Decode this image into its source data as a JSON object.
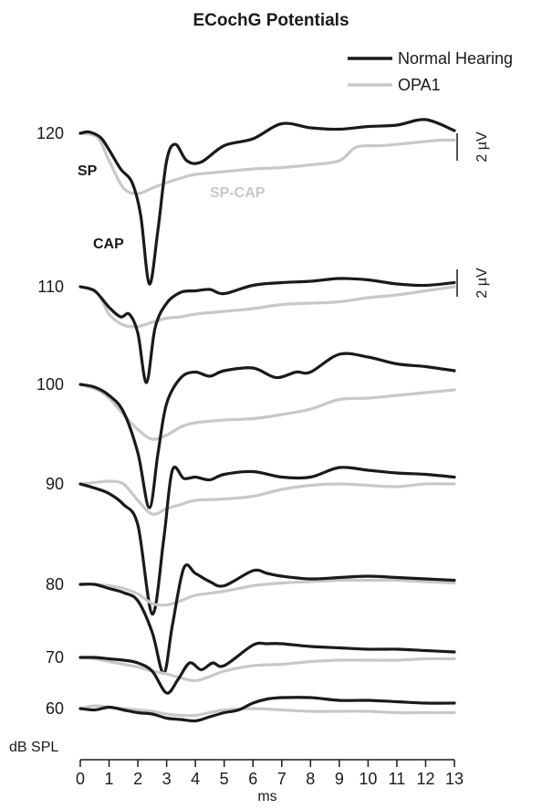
{
  "chart_data": {
    "type": "line",
    "title": "ECochG Potentials",
    "xlabel": "ms",
    "xlim": [
      0,
      13
    ],
    "x_ticks": [
      "0",
      "1",
      "2",
      "3",
      "4",
      "5",
      "6",
      "7",
      "8",
      "9",
      "10",
      "11",
      "12",
      "13"
    ],
    "y_axis_unit_label": "dB SPL",
    "legend": {
      "placement": "top-right",
      "entries": [
        {
          "name": "Normal Hearing",
          "color": "#1a1a1a"
        },
        {
          "name": "OPA1",
          "color": "#c8c8c8"
        }
      ]
    },
    "scale_bar": {
      "label": "2 µV",
      "value_uV": 2
    },
    "annotations": {
      "sp": "SP",
      "cap": "CAP",
      "sp_cap": "SP-CAP"
    },
    "levels": [
      {
        "level": "120",
        "baseline_offset": 0,
        "normal": [
          [
            0,
            0
          ],
          [
            0.3,
            0.1
          ],
          [
            0.7,
            -0.3
          ],
          [
            1.0,
            -1.2
          ],
          [
            1.4,
            -2.6
          ],
          [
            1.8,
            -3.6
          ],
          [
            2.1,
            -6.0
          ],
          [
            2.4,
            -11.0
          ],
          [
            2.7,
            -7.0
          ],
          [
            3.0,
            -2.0
          ],
          [
            3.3,
            -0.8
          ],
          [
            3.7,
            -2.0
          ],
          [
            4.2,
            -2.1
          ],
          [
            5.0,
            -0.9
          ],
          [
            6.0,
            -0.4
          ],
          [
            7.0,
            0.7
          ],
          [
            8.0,
            0.4
          ],
          [
            9.0,
            0.3
          ],
          [
            10.0,
            0.5
          ],
          [
            11.0,
            0.6
          ],
          [
            12.0,
            1.0
          ],
          [
            13.0,
            0.2
          ]
        ],
        "opa1": [
          [
            0,
            0
          ],
          [
            0.6,
            -0.3
          ],
          [
            1.0,
            -2.0
          ],
          [
            1.5,
            -4.0
          ],
          [
            2.0,
            -4.4
          ],
          [
            2.5,
            -4.0
          ],
          [
            3.0,
            -3.6
          ],
          [
            3.6,
            -3.2
          ],
          [
            4.0,
            -3.0
          ],
          [
            5.0,
            -2.8
          ],
          [
            6.0,
            -2.6
          ],
          [
            7.0,
            -2.5
          ],
          [
            8.0,
            -2.3
          ],
          [
            9.0,
            -2.0
          ],
          [
            9.6,
            -1.0
          ],
          [
            10.5,
            -0.9
          ],
          [
            11.5,
            -0.7
          ],
          [
            12.5,
            -0.5
          ],
          [
            13.0,
            -0.5
          ]
        ]
      },
      {
        "level": "110",
        "baseline_offset": 0,
        "normal": [
          [
            0,
            0
          ],
          [
            0.5,
            -0.3
          ],
          [
            1.0,
            -1.5
          ],
          [
            1.4,
            -2.2
          ],
          [
            1.7,
            -2.0
          ],
          [
            2.0,
            -3.4
          ],
          [
            2.3,
            -7.0
          ],
          [
            2.6,
            -3.0
          ],
          [
            3.0,
            -1.2
          ],
          [
            3.5,
            -0.4
          ],
          [
            4.0,
            -0.3
          ],
          [
            4.5,
            -0.2
          ],
          [
            5.0,
            -0.5
          ],
          [
            6.0,
            0.1
          ],
          [
            7.0,
            0.3
          ],
          [
            8.0,
            0.4
          ],
          [
            9.0,
            0.6
          ],
          [
            10.0,
            0.5
          ],
          [
            11.0,
            0.2
          ],
          [
            12.0,
            0.1
          ],
          [
            13.0,
            0.3
          ]
        ],
        "opa1": [
          [
            0,
            0
          ],
          [
            0.6,
            -0.5
          ],
          [
            1.0,
            -2.0
          ],
          [
            1.5,
            -2.8
          ],
          [
            2.0,
            -2.9
          ],
          [
            2.5,
            -2.6
          ],
          [
            3.0,
            -2.3
          ],
          [
            3.5,
            -2.2
          ],
          [
            4.0,
            -2.0
          ],
          [
            5.0,
            -1.8
          ],
          [
            6.0,
            -1.6
          ],
          [
            7.0,
            -1.3
          ],
          [
            8.0,
            -1.2
          ],
          [
            9.0,
            -1.1
          ],
          [
            10.0,
            -0.8
          ],
          [
            11.0,
            -0.6
          ],
          [
            12.0,
            -0.3
          ],
          [
            13.0,
            0.0
          ]
        ]
      },
      {
        "level": "100",
        "baseline_offset": 0,
        "normal": [
          [
            0,
            0
          ],
          [
            0.5,
            -0.2
          ],
          [
            1.0,
            -0.8
          ],
          [
            1.5,
            -2.0
          ],
          [
            2.0,
            -5.0
          ],
          [
            2.4,
            -9.0
          ],
          [
            2.7,
            -5.0
          ],
          [
            3.0,
            -1.4
          ],
          [
            3.5,
            0.5
          ],
          [
            4.0,
            0.9
          ],
          [
            4.5,
            0.6
          ],
          [
            5.0,
            1.0
          ],
          [
            6.0,
            1.2
          ],
          [
            6.8,
            0.5
          ],
          [
            7.5,
            0.9
          ],
          [
            8.0,
            0.9
          ],
          [
            9.0,
            2.2
          ],
          [
            10.0,
            2.0
          ],
          [
            11.0,
            1.5
          ],
          [
            12.0,
            1.3
          ],
          [
            13.0,
            1.0
          ]
        ],
        "opa1": [
          [
            0,
            0
          ],
          [
            0.6,
            -0.4
          ],
          [
            1.0,
            -1.0
          ],
          [
            1.5,
            -2.2
          ],
          [
            2.0,
            -3.3
          ],
          [
            2.5,
            -4.0
          ],
          [
            3.0,
            -3.7
          ],
          [
            3.5,
            -3.1
          ],
          [
            4.0,
            -2.8
          ],
          [
            5.0,
            -2.6
          ],
          [
            6.0,
            -2.5
          ],
          [
            7.0,
            -2.2
          ],
          [
            8.0,
            -1.8
          ],
          [
            9.0,
            -1.1
          ],
          [
            10.0,
            -1.0
          ],
          [
            11.0,
            -0.8
          ],
          [
            12.0,
            -0.6
          ],
          [
            13.0,
            -0.4
          ]
        ]
      },
      {
        "level": "90",
        "baseline_offset": 0,
        "normal": [
          [
            0,
            0
          ],
          [
            0.5,
            -0.3
          ],
          [
            1.0,
            -0.7
          ],
          [
            1.5,
            -1.5
          ],
          [
            2.0,
            -3.0
          ],
          [
            2.5,
            -9.5
          ],
          [
            2.9,
            -4.0
          ],
          [
            3.2,
            1.0
          ],
          [
            3.6,
            0.4
          ],
          [
            4.0,
            0.5
          ],
          [
            4.5,
            0.3
          ],
          [
            5.0,
            0.7
          ],
          [
            6.0,
            0.9
          ],
          [
            7.0,
            0.5
          ],
          [
            8.0,
            0.5
          ],
          [
            9.0,
            1.2
          ],
          [
            10.0,
            1.0
          ],
          [
            11.0,
            0.8
          ],
          [
            12.0,
            0.7
          ],
          [
            13.0,
            0.5
          ]
        ],
        "opa1": [
          [
            0,
            0
          ],
          [
            0.5,
            0.1
          ],
          [
            1.0,
            0.2
          ],
          [
            1.5,
            0.0
          ],
          [
            2.0,
            -1.2
          ],
          [
            2.5,
            -2.2
          ],
          [
            3.0,
            -1.8
          ],
          [
            3.5,
            -1.5
          ],
          [
            4.0,
            -1.2
          ],
          [
            5.0,
            -1.1
          ],
          [
            6.0,
            -0.9
          ],
          [
            7.0,
            -0.4
          ],
          [
            8.0,
            -0.1
          ],
          [
            9.0,
            0.0
          ],
          [
            10.0,
            -0.1
          ],
          [
            11.0,
            -0.2
          ],
          [
            12.0,
            0.0
          ],
          [
            13.0,
            0.0
          ]
        ]
      },
      {
        "level": "80",
        "baseline_offset": 0,
        "normal": [
          [
            0,
            0
          ],
          [
            0.5,
            0.0
          ],
          [
            1.0,
            -0.3
          ],
          [
            1.5,
            -0.6
          ],
          [
            2.0,
            -1.2
          ],
          [
            2.5,
            -3.5
          ],
          [
            2.9,
            -6.5
          ],
          [
            3.2,
            -3.0
          ],
          [
            3.6,
            1.2
          ],
          [
            4.0,
            0.8
          ],
          [
            4.5,
            0.2
          ],
          [
            5.0,
            -0.1
          ],
          [
            6.0,
            1.0
          ],
          [
            6.5,
            0.8
          ],
          [
            7.0,
            0.6
          ],
          [
            8.0,
            0.4
          ],
          [
            9.0,
            0.5
          ],
          [
            10.0,
            0.6
          ],
          [
            11.0,
            0.5
          ],
          [
            12.0,
            0.4
          ],
          [
            13.0,
            0.3
          ]
        ],
        "opa1": [
          [
            0,
            0
          ],
          [
            0.5,
            0.0
          ],
          [
            1.0,
            -0.1
          ],
          [
            1.5,
            -0.3
          ],
          [
            2.0,
            -0.7
          ],
          [
            2.5,
            -1.4
          ],
          [
            3.0,
            -1.5
          ],
          [
            3.5,
            -1.2
          ],
          [
            4.0,
            -0.8
          ],
          [
            5.0,
            -0.5
          ],
          [
            6.0,
            -0.1
          ],
          [
            7.0,
            0.1
          ],
          [
            8.0,
            0.2
          ],
          [
            9.0,
            0.3
          ],
          [
            10.0,
            0.3
          ],
          [
            11.0,
            0.3
          ],
          [
            12.0,
            0.2
          ],
          [
            13.0,
            0.1
          ]
        ]
      },
      {
        "level": "70",
        "baseline_offset": 0,
        "normal": [
          [
            0,
            0
          ],
          [
            0.5,
            0.0
          ],
          [
            1.0,
            -0.1
          ],
          [
            1.5,
            -0.2
          ],
          [
            2.0,
            -0.4
          ],
          [
            2.5,
            -1.0
          ],
          [
            3.0,
            -2.6
          ],
          [
            3.4,
            -1.6
          ],
          [
            3.8,
            -0.4
          ],
          [
            4.2,
            -0.9
          ],
          [
            4.6,
            -0.4
          ],
          [
            5.0,
            -0.6
          ],
          [
            6.0,
            0.9
          ],
          [
            6.5,
            1.0
          ],
          [
            7.0,
            1.0
          ],
          [
            8.0,
            0.8
          ],
          [
            9.0,
            0.7
          ],
          [
            10.0,
            0.6
          ],
          [
            11.0,
            0.6
          ],
          [
            12.0,
            0.5
          ],
          [
            13.0,
            0.4
          ]
        ],
        "opa1": [
          [
            0,
            0
          ],
          [
            0.5,
            -0.1
          ],
          [
            1.0,
            -0.3
          ],
          [
            1.5,
            -0.5
          ],
          [
            2.0,
            -0.7
          ],
          [
            2.5,
            -1.0
          ],
          [
            3.0,
            -1.2
          ],
          [
            3.5,
            -1.5
          ],
          [
            4.0,
            -1.7
          ],
          [
            4.5,
            -1.4
          ],
          [
            5.0,
            -1.0
          ],
          [
            6.0,
            -0.6
          ],
          [
            7.0,
            -0.5
          ],
          [
            8.0,
            -0.3
          ],
          [
            9.0,
            -0.2
          ],
          [
            10.0,
            -0.2
          ],
          [
            11.0,
            -0.2
          ],
          [
            12.0,
            -0.1
          ],
          [
            13.0,
            -0.1
          ]
        ]
      },
      {
        "level": "60",
        "baseline_offset": 0,
        "normal": [
          [
            0,
            0
          ],
          [
            0.5,
            -0.1
          ],
          [
            1.0,
            0.1
          ],
          [
            1.5,
            -0.1
          ],
          [
            2.0,
            -0.3
          ],
          [
            2.5,
            -0.4
          ],
          [
            3.0,
            -0.7
          ],
          [
            3.5,
            -0.8
          ],
          [
            4.0,
            -0.9
          ],
          [
            4.5,
            -0.6
          ],
          [
            5.0,
            -0.3
          ],
          [
            5.5,
            -0.1
          ],
          [
            6.0,
            0.4
          ],
          [
            6.5,
            0.7
          ],
          [
            7.0,
            0.8
          ],
          [
            8.0,
            0.8
          ],
          [
            9.0,
            0.6
          ],
          [
            10.0,
            0.6
          ],
          [
            11.0,
            0.5
          ],
          [
            12.0,
            0.4
          ],
          [
            13.0,
            0.4
          ]
        ],
        "opa1": [
          [
            0,
            0
          ],
          [
            0.5,
            0.2
          ],
          [
            1.0,
            0.1
          ],
          [
            1.5,
            0.0
          ],
          [
            2.0,
            -0.1
          ],
          [
            2.5,
            -0.2
          ],
          [
            3.0,
            -0.4
          ],
          [
            3.5,
            -0.5
          ],
          [
            4.0,
            -0.5
          ],
          [
            4.5,
            -0.3
          ],
          [
            5.0,
            -0.1
          ],
          [
            6.0,
            0.0
          ],
          [
            7.0,
            -0.1
          ],
          [
            8.0,
            -0.2
          ],
          [
            9.0,
            -0.2
          ],
          [
            10.0,
            -0.2
          ],
          [
            11.0,
            -0.3
          ],
          [
            12.0,
            -0.3
          ],
          [
            13.0,
            -0.3
          ]
        ]
      }
    ]
  }
}
